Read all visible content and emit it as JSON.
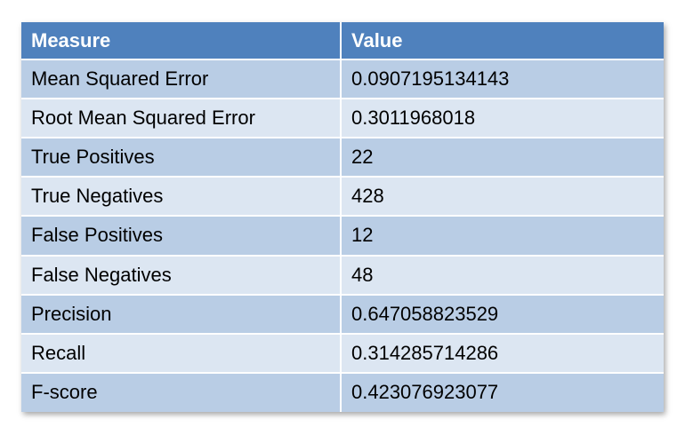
{
  "table": {
    "headers": [
      "Measure",
      "Value"
    ],
    "rows": [
      [
        "Mean Squared Error",
        "0.0907195134143"
      ],
      [
        "Root Mean Squared Error",
        "0.3011968018"
      ],
      [
        "True Positives",
        "22"
      ],
      [
        "True Negatives",
        "428"
      ],
      [
        "False Positives",
        "12"
      ],
      [
        "False Negatives",
        "48"
      ],
      [
        "Precision",
        "0.647058823529"
      ],
      [
        "Recall",
        "0.314285714286"
      ],
      [
        "F-score",
        "0.423076923077"
      ]
    ]
  },
  "colors": {
    "header_bg": "#4f81bd",
    "header_text": "#ffffff",
    "row_dark": "#b9cde5",
    "row_light": "#dce6f2"
  }
}
